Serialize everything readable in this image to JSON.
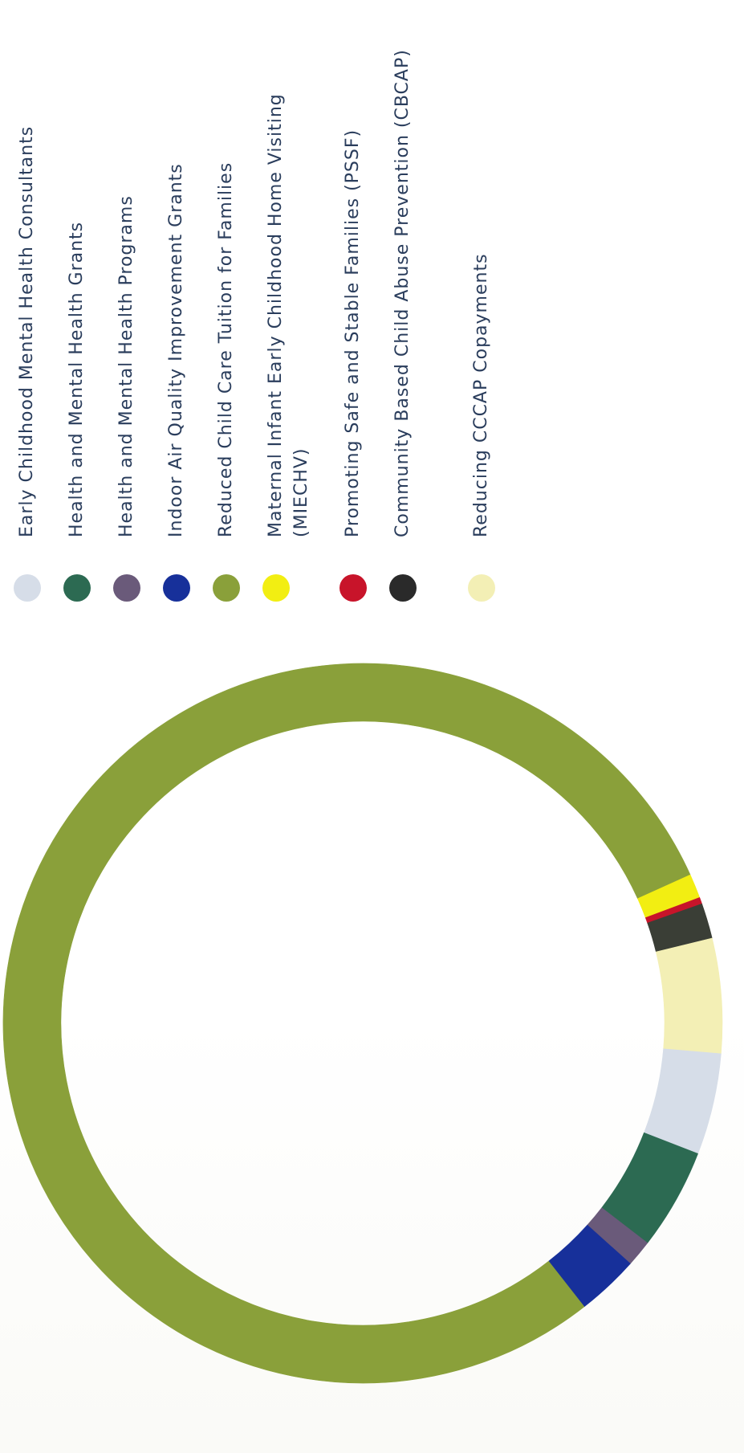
{
  "chart_data": {
    "type": "donut",
    "title": "",
    "slices": [
      {
        "label": "Reduced Child Care Tuition for Families",
        "value": 79.6,
        "color": "#8aa03a"
      },
      {
        "label": "Maternal Infant Early Childhood Home Visiting (MIECHV)",
        "value": 1.1,
        "color": "#f2ee12"
      },
      {
        "label": "Promoting Safe and Stable Families (PSSF)",
        "value": 0.3,
        "color": "#c8142a"
      },
      {
        "label": "Community Based Child Abuse Prevention (CBCAP)",
        "value": 1.6,
        "color": "#3a3e36"
      },
      {
        "label": "Reducing CCCAP Copayments",
        "value": 5.2,
        "color": "#f3efb5"
      },
      {
        "label": "Early Childhood Mental Health Consultants",
        "value": 4.6,
        "color": "#d6dde8"
      },
      {
        "label": "Health and Mental Health Grants",
        "value": 4.6,
        "color": "#2c6a52"
      },
      {
        "label": "Health and Mental Health Programs",
        "value": 1.2,
        "color": "#6a5a7a"
      },
      {
        "label": "Indoor Air Quality Improvement Grants",
        "value": 2.8,
        "color": "#17309a"
      }
    ],
    "legend_position": "right",
    "legend": [
      {
        "label": "Early Childhood Mental Health Consultants",
        "color": "#d6dde8"
      },
      {
        "label": "Health and Mental Health Grants",
        "color": "#2c6a52"
      },
      {
        "label": "Health and Mental Health Programs",
        "color": "#6a5a7a"
      },
      {
        "label": "Indoor Air Quality Improvement Grants",
        "color": "#17309a"
      },
      {
        "label": "Reduced Child Care Tuition for Families",
        "color": "#8aa03a"
      },
      {
        "label": "Maternal Infant Early Childhood Home Visiting (MIECHV)",
        "color": "#f2ee12"
      },
      {
        "label": "Promoting Safe and Stable Families (PSSF)",
        "color": "#c8142a"
      },
      {
        "label": "Community Based Child Abuse Prevention (CBCAP)",
        "color": "#2a2a2a"
      },
      {
        "label": "Reducing CCCAP Copayments",
        "color": "#f3efb5"
      }
    ]
  }
}
